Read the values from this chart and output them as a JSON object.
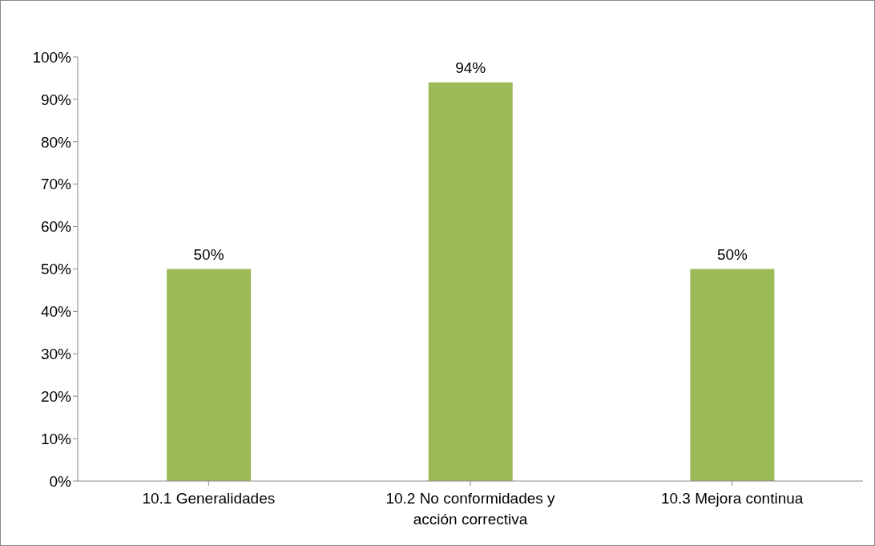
{
  "chart_data": {
    "type": "bar",
    "categories": [
      "10.1 Generalidades",
      "10.2 No conformidades y acción correctiva",
      "10.3 Mejora continua"
    ],
    "values": [
      50,
      94,
      50
    ],
    "color": "#9bbb59",
    "value_labels": [
      "50%",
      "94%",
      "50%"
    ],
    "ylim": [
      0,
      100
    ],
    "yticks": [
      {
        "value": 0,
        "label": "0%"
      },
      {
        "value": 10,
        "label": "10%"
      },
      {
        "value": 20,
        "label": "20%"
      },
      {
        "value": 30,
        "label": "30%"
      },
      {
        "value": 40,
        "label": "40%"
      },
      {
        "value": 50,
        "label": "50%"
      },
      {
        "value": 60,
        "label": "60%"
      },
      {
        "value": 70,
        "label": "70%"
      },
      {
        "value": 80,
        "label": "80%"
      },
      {
        "value": 90,
        "label": "90%"
      },
      {
        "value": 100,
        "label": "100%"
      }
    ],
    "grid": false,
    "legend": false
  }
}
